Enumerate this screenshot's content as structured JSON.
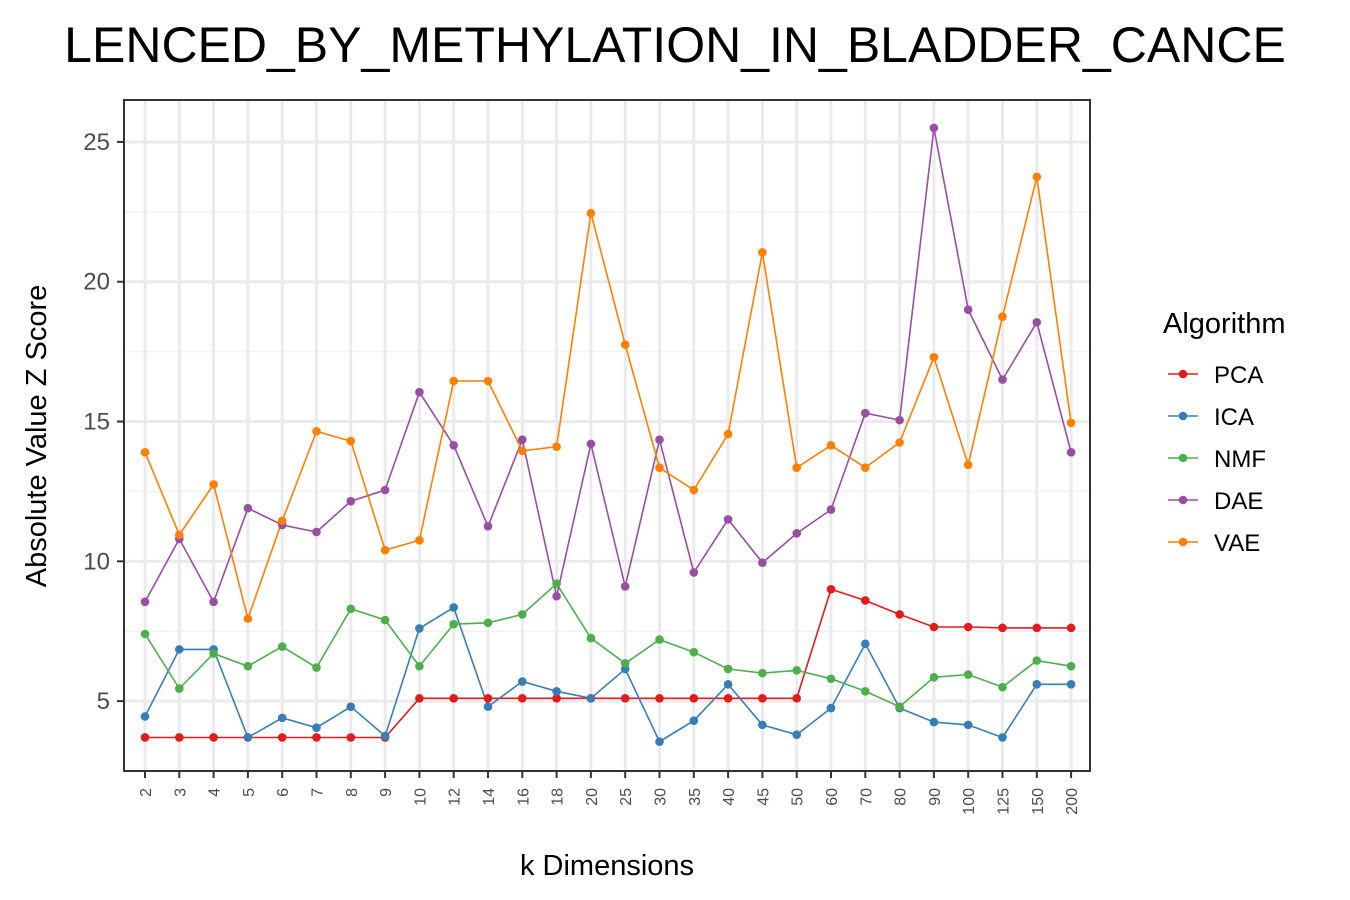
{
  "chart_data": {
    "type": "line",
    "title": "LENCED_BY_METHYLATION_IN_BLADDER_CANCE",
    "xlabel": "k Dimensions",
    "ylabel": "Absolute Value Z Score",
    "categories": [
      "2",
      "3",
      "4",
      "5",
      "6",
      "7",
      "8",
      "9",
      "10",
      "12",
      "14",
      "16",
      "18",
      "20",
      "25",
      "30",
      "35",
      "40",
      "45",
      "50",
      "60",
      "70",
      "80",
      "90",
      "100",
      "125",
      "150",
      "200"
    ],
    "ylim": [
      2.5,
      26.5
    ],
    "yticks": [
      5,
      10,
      15,
      20,
      25
    ],
    "ytick_labels": [
      "5",
      "10",
      "15",
      "20",
      "25"
    ],
    "grid": true,
    "legend": {
      "title": "Algorithm",
      "position": "right"
    },
    "series": [
      {
        "name": "PCA",
        "color": "#E41A1C",
        "values": [
          3.7,
          3.7,
          3.7,
          3.7,
          3.7,
          3.7,
          3.7,
          3.7,
          5.1,
          5.1,
          5.1,
          5.1,
          5.1,
          5.1,
          5.1,
          5.1,
          5.1,
          5.1,
          5.1,
          5.1,
          9.0,
          8.6,
          8.1,
          7.65,
          7.65,
          7.62,
          7.62,
          7.62
        ]
      },
      {
        "name": "ICA",
        "color": "#377EB8",
        "values": [
          4.45,
          6.85,
          6.85,
          3.7,
          4.4,
          4.05,
          4.8,
          3.75,
          7.6,
          8.35,
          4.8,
          5.7,
          5.35,
          5.1,
          6.15,
          3.55,
          4.3,
          5.6,
          4.15,
          3.8,
          4.75,
          7.05,
          4.75,
          4.25,
          4.15,
          3.7,
          5.6,
          5.6
        ]
      },
      {
        "name": "NMF",
        "color": "#4DAF4A",
        "values": [
          7.4,
          5.45,
          6.7,
          6.25,
          6.95,
          6.2,
          8.3,
          7.9,
          6.25,
          7.75,
          7.8,
          8.1,
          9.2,
          7.25,
          6.35,
          7.2,
          6.75,
          6.15,
          6.0,
          6.1,
          5.8,
          5.35,
          4.8,
          5.85,
          5.95,
          5.5,
          6.45,
          6.25
        ]
      },
      {
        "name": "DAE",
        "color": "#984EA3",
        "values": [
          8.55,
          10.8,
          8.55,
          11.9,
          11.3,
          11.05,
          12.15,
          12.55,
          16.05,
          14.15,
          11.25,
          14.35,
          8.75,
          14.2,
          9.1,
          14.35,
          9.6,
          11.5,
          9.95,
          11.0,
          11.85,
          15.3,
          15.05,
          25.5,
          19.0,
          16.5,
          18.55,
          13.9
        ]
      },
      {
        "name": "VAE",
        "color": "#FF7F00",
        "values": [
          13.9,
          10.95,
          12.75,
          7.95,
          11.45,
          14.65,
          14.3,
          10.4,
          10.75,
          16.45,
          16.45,
          13.95,
          14.1,
          22.45,
          17.75,
          13.35,
          12.55,
          14.55,
          21.05,
          13.35,
          14.15,
          13.35,
          14.25,
          17.3,
          13.45,
          18.75,
          23.75,
          14.95
        ]
      }
    ]
  }
}
